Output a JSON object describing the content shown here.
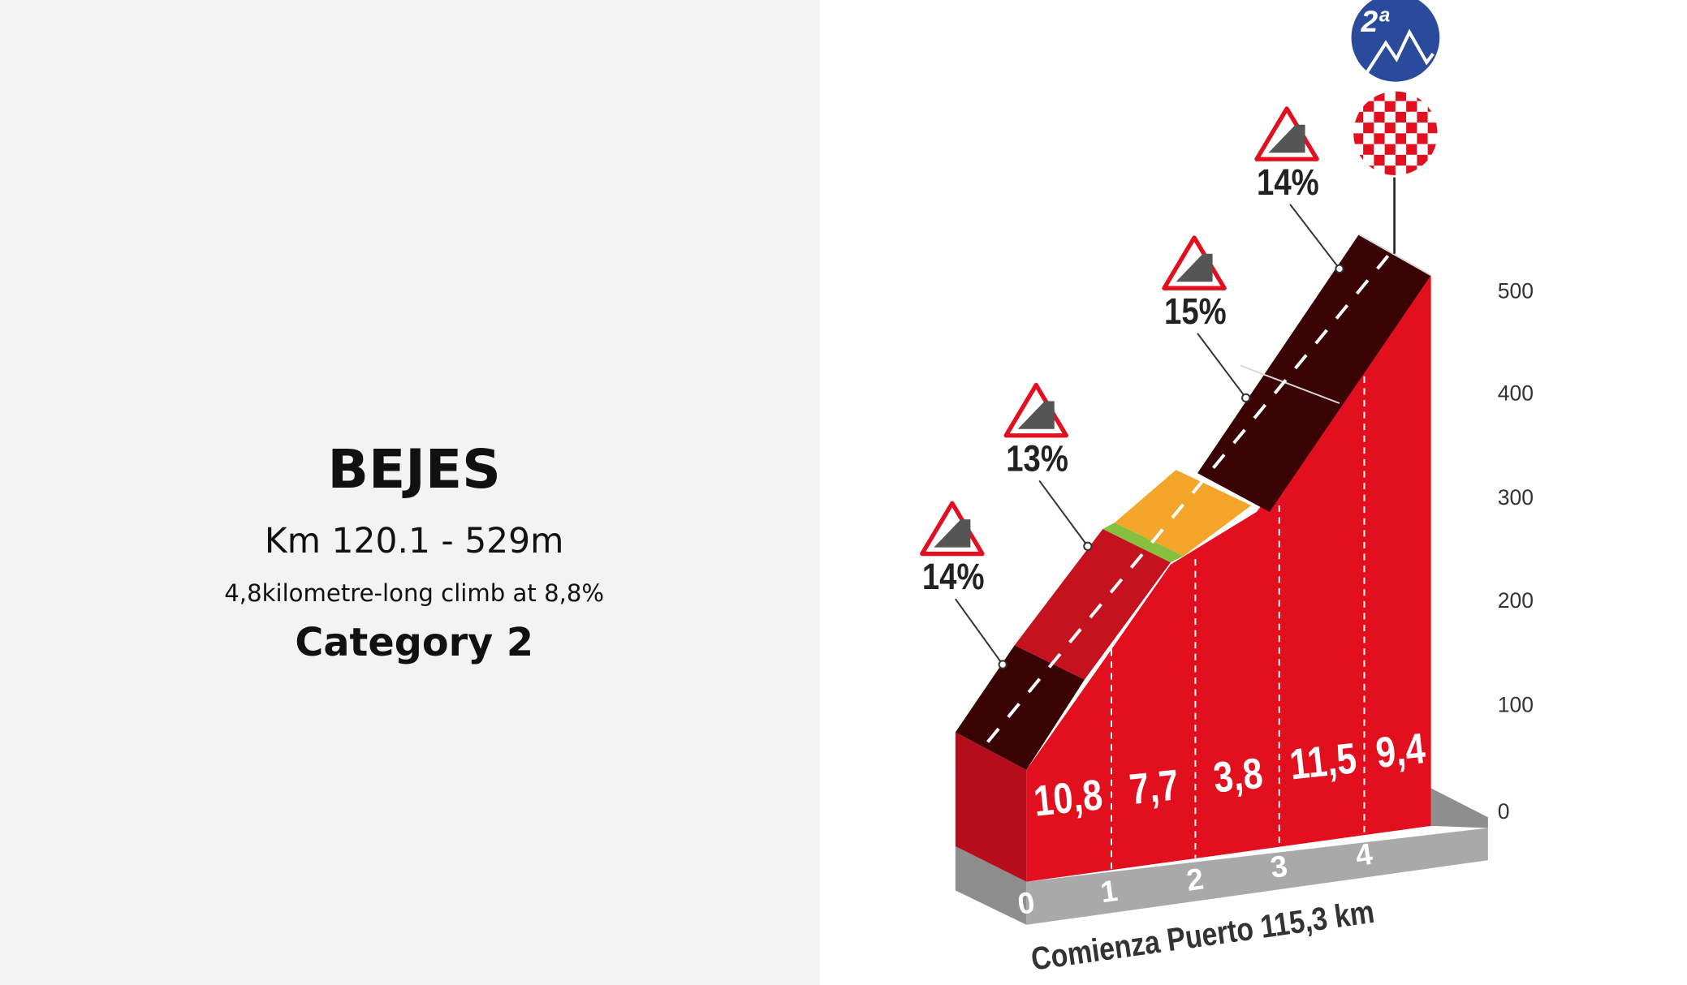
{
  "info": {
    "title": "BEJES",
    "location": "Km 120.1 - 529m",
    "description": "4,8kilometre-long climb at 8,8%",
    "category": "Category 2"
  },
  "profile": {
    "badge": "2ª",
    "altitude_ticks": [
      "0",
      "100",
      "200",
      "300",
      "400",
      "500"
    ],
    "km_ticks": [
      "0",
      "1",
      "2",
      "3",
      "4"
    ],
    "segment_gradients": [
      "10,8",
      "7,7",
      "3,8",
      "11,5",
      "9,4"
    ],
    "max_gradients": [
      "14%",
      "13%",
      "15%",
      "14%"
    ],
    "start_label": "Comienza Puerto 115,3 km"
  }
}
